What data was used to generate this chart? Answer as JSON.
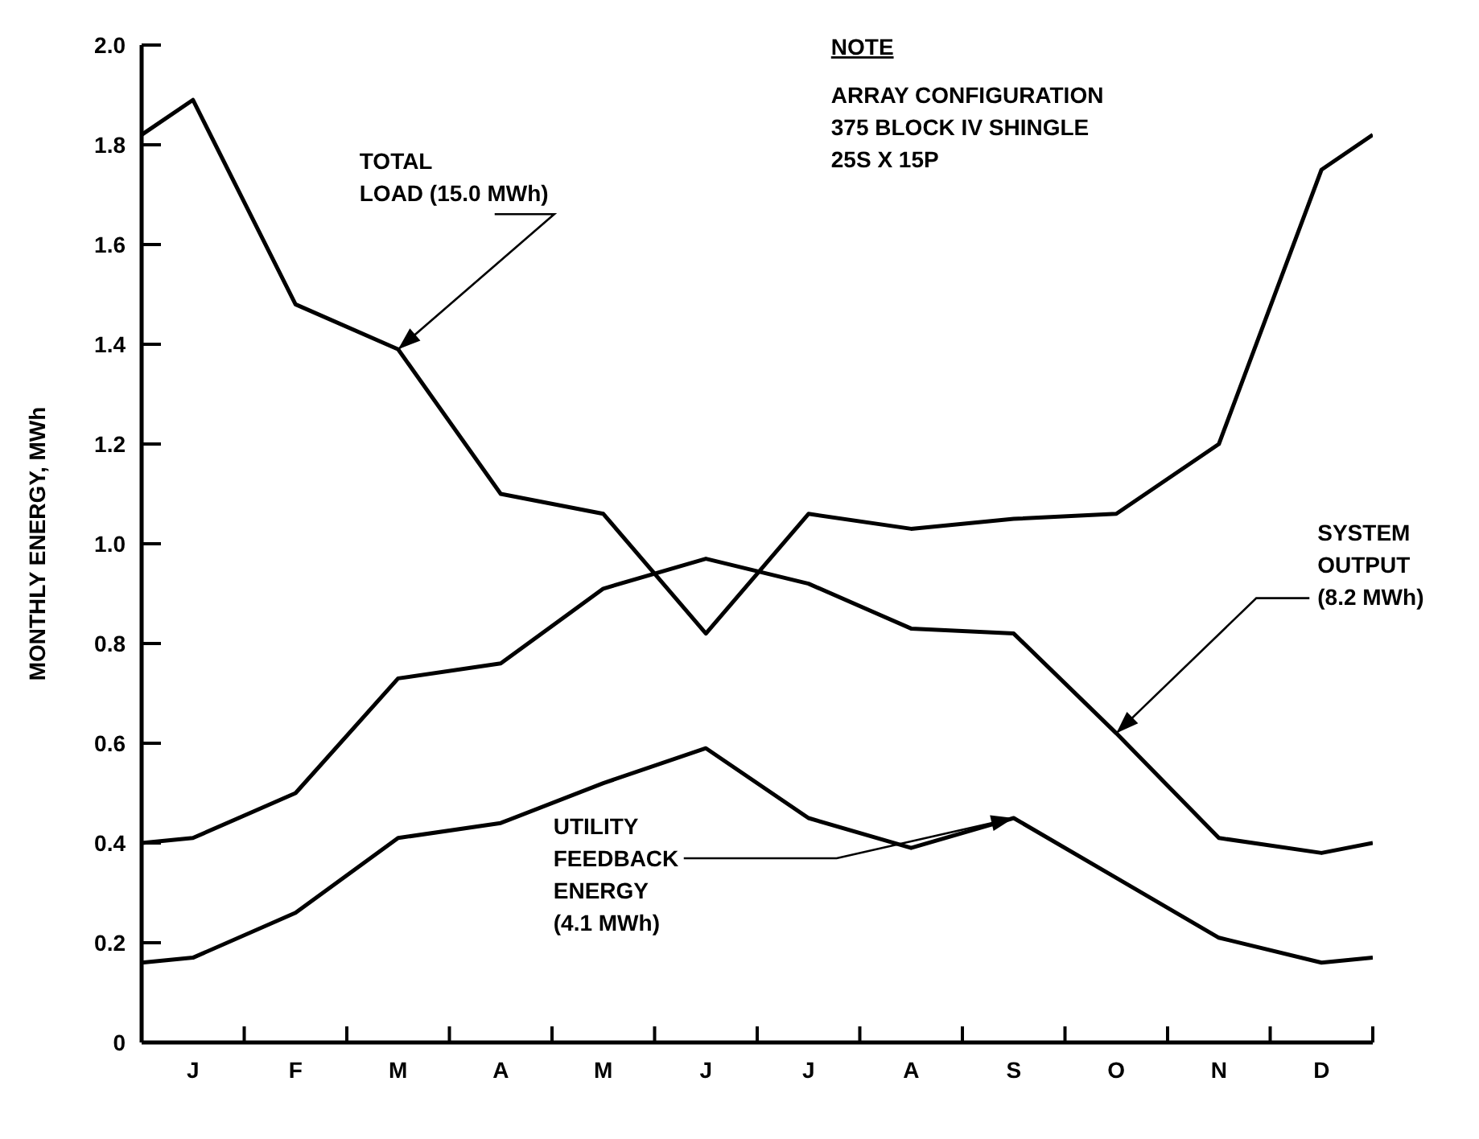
{
  "chart_data": {
    "type": "line",
    "ylabel": "MONTHLY ENERGY, MWh",
    "categories": [
      null,
      "J",
      null,
      "F",
      null,
      "M",
      null,
      "A",
      null,
      "M",
      null,
      "J",
      null,
      "J",
      null,
      "A",
      null,
      "S",
      null,
      "O",
      null,
      "N",
      null,
      "D",
      null
    ],
    "series": [
      {
        "color": "#000000",
        "values": [
          1.82,
          1.89,
          null,
          1.48,
          null,
          1.39,
          null,
          1.1,
          null,
          1.06,
          null,
          0.82,
          null,
          1.06,
          null,
          1.03,
          null,
          1.05,
          null,
          1.06,
          null,
          1.2,
          null,
          1.75,
          1.82
        ]
      },
      {
        "color": "#000000",
        "values": [
          0.4,
          0.41,
          null,
          0.5,
          null,
          0.73,
          null,
          0.76,
          null,
          0.91,
          null,
          0.97,
          null,
          0.92,
          null,
          0.83,
          null,
          0.82,
          null,
          0.62,
          null,
          0.41,
          null,
          0.38,
          0.4
        ]
      },
      {
        "color": "#000000",
        "values": [
          0.16,
          0.17,
          null,
          0.26,
          null,
          0.41,
          null,
          0.44,
          null,
          0.52,
          null,
          0.59,
          null,
          0.45,
          null,
          0.39,
          null,
          0.45,
          null,
          0.33,
          null,
          0.21,
          null,
          0.16,
          0.17
        ]
      }
    ],
    "ylim": [
      0,
      2.0
    ],
    "yticks": [
      0,
      0.2,
      0.4,
      0.6,
      0.8,
      {
        "value": 1,
        "label": "1.0"
      },
      1.2,
      1.4,
      1.6,
      1.8,
      {
        "value": 2,
        "label": "2.0"
      }
    ],
    "grid": false,
    "legend": false,
    "marker": "none",
    "line_style": "solid",
    "annotations": [
      {
        "text": "TOTAL\nLOAD (15.0 MWh)",
        "x": "M",
        "y": 1.39
      },
      {
        "text": "UTILITY\nFEEDBACK\nENERGY\n(4.1 MWh)",
        "x": "S",
        "y": 0.45
      },
      {
        "text": "SYSTEM\nOUTPUT\n(8.2 MWh)",
        "x": "O",
        "y": 0.62
      },
      "NOTE\nARRAY CONFIGURATION\n375 BLOCK IV SHINGLE\n25S X 15P"
    ]
  }
}
